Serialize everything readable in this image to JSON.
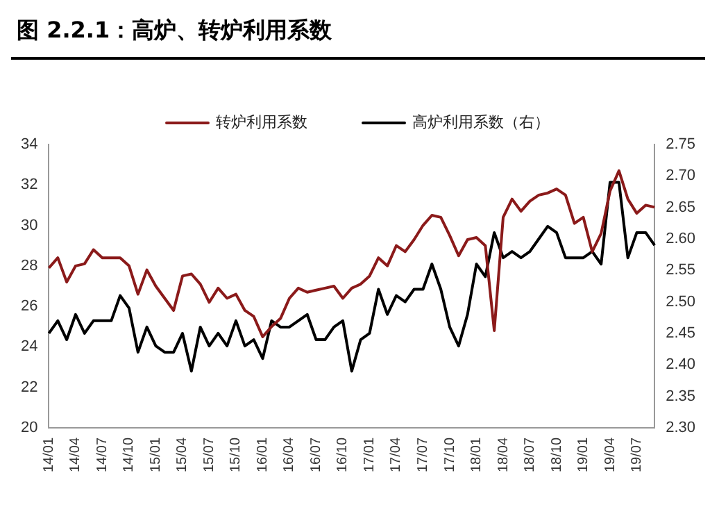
{
  "chart_data": {
    "type": "line",
    "title": "图 2.2.1：高炉、转炉利用系数",
    "categories": [
      "14/01",
      null,
      null,
      "14/04",
      null,
      null,
      "14/07",
      null,
      null,
      "14/10",
      null,
      null,
      "15/01",
      null,
      null,
      "15/04",
      null,
      null,
      "15/07",
      null,
      null,
      "15/10",
      null,
      null,
      "16/01",
      null,
      null,
      "16/04",
      null,
      null,
      "16/07",
      null,
      null,
      "16/10",
      null,
      null,
      "17/01",
      null,
      null,
      "17/04",
      null,
      null,
      "17/07",
      null,
      null,
      "17/10",
      null,
      null,
      "18/01",
      null,
      null,
      "18/04",
      null,
      null,
      "18/07",
      null,
      null,
      "18/10",
      null,
      null,
      "19/01",
      null,
      null,
      "19/04",
      null,
      null,
      "19/07",
      null,
      null
    ],
    "series": [
      {
        "name": "转炉利用系数",
        "color": "#8b1a1a",
        "values": [
          27.9,
          28.4,
          27.2,
          28.0,
          28.1,
          28.8,
          28.4,
          28.4,
          28.4,
          28.0,
          26.6,
          27.8,
          27.0,
          26.4,
          25.8,
          27.5,
          27.6,
          27.1,
          26.2,
          26.9,
          26.4,
          26.6,
          25.8,
          25.5,
          24.5,
          25.0,
          25.4,
          26.4,
          26.9,
          26.7,
          26.8,
          26.9,
          27.0,
          26.4,
          26.9,
          27.1,
          27.5,
          28.4,
          28.0,
          29.0,
          28.7,
          29.3,
          30.0,
          30.5,
          30.4,
          29.5,
          28.5,
          29.3,
          29.4,
          29.0,
          24.8,
          30.4,
          31.3,
          30.7,
          31.2,
          31.5,
          31.6,
          31.8,
          31.5,
          30.1,
          30.4,
          28.7,
          29.6,
          31.7,
          32.7,
          31.3,
          30.6,
          31.0,
          30.9
        ]
      },
      {
        "name": "高炉利用系数（右）",
        "color": "#000000",
        "axis": "y2",
        "values": [
          2.45,
          2.47,
          2.44,
          2.48,
          2.45,
          2.47,
          2.47,
          2.47,
          2.51,
          2.49,
          2.42,
          2.46,
          2.43,
          2.42,
          2.42,
          2.45,
          2.39,
          2.46,
          2.43,
          2.45,
          2.43,
          2.47,
          2.43,
          2.44,
          2.41,
          2.47,
          2.46,
          2.46,
          2.47,
          2.48,
          2.44,
          2.44,
          2.46,
          2.47,
          2.39,
          2.44,
          2.45,
          2.52,
          2.48,
          2.51,
          2.5,
          2.52,
          2.52,
          2.56,
          2.52,
          2.46,
          2.43,
          2.48,
          2.56,
          2.54,
          2.61,
          2.57,
          2.58,
          2.57,
          2.58,
          2.6,
          2.62,
          2.61,
          2.57,
          2.57,
          2.57,
          2.58,
          2.56,
          2.69,
          2.69,
          2.57,
          2.61,
          2.61,
          2.59
        ]
      }
    ],
    "ylim": [
      20,
      34
    ],
    "yticks": [
      20,
      22,
      24,
      26,
      28,
      30,
      32,
      34
    ],
    "y2lim": [
      2.3,
      2.75
    ],
    "y2ticks": [
      {
        "value": 2.3,
        "label": "2.30"
      },
      {
        "value": 2.35,
        "label": "2.35"
      },
      {
        "value": 2.4,
        "label": "2.40"
      },
      {
        "value": 2.45,
        "label": "2.45"
      },
      {
        "value": 2.5,
        "label": "2.50"
      },
      {
        "value": 2.55,
        "label": "2.55"
      },
      {
        "value": 2.6,
        "label": "2.60"
      },
      {
        "value": 2.65,
        "label": "2.65"
      },
      {
        "value": 2.7,
        "label": "2.70"
      },
      {
        "value": 2.75,
        "label": "2.75"
      }
    ],
    "grid": false,
    "legend": "top",
    "marker": "none",
    "line_style": "solid"
  }
}
